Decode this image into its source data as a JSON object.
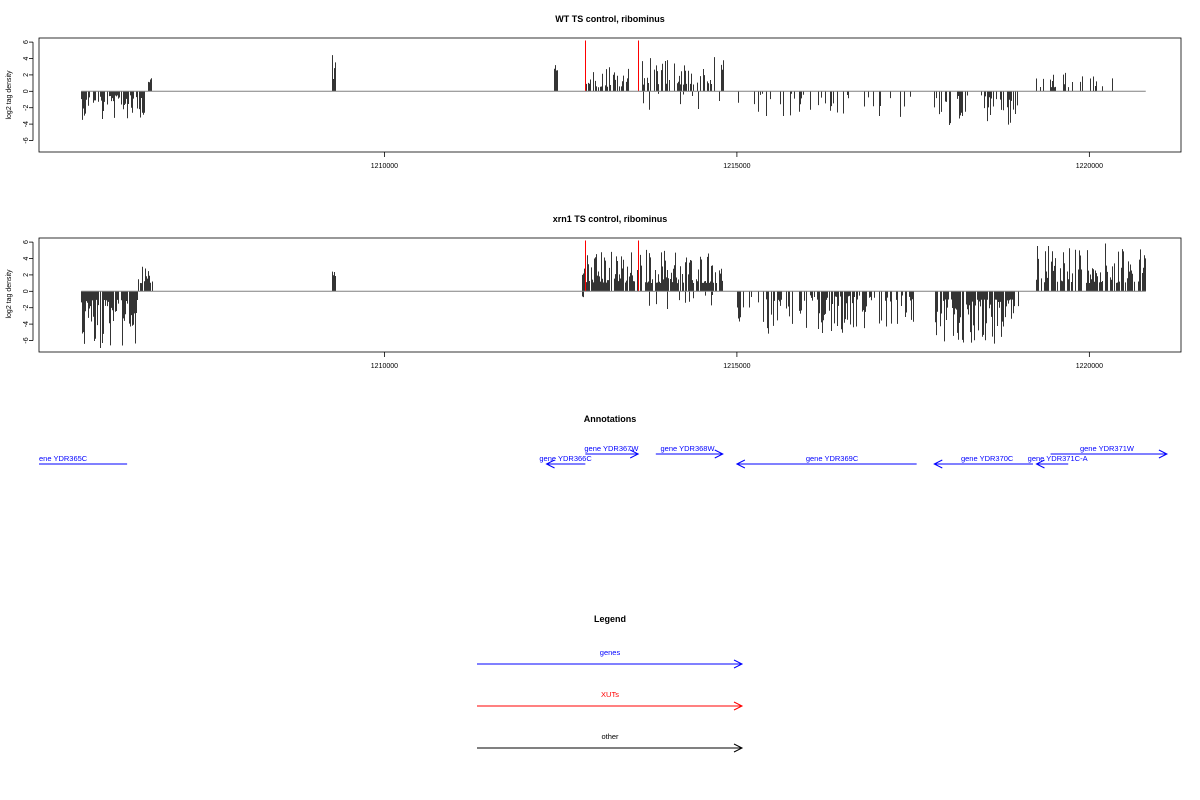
{
  "colors": {
    "genes": "#0000ff",
    "xuts": "#ff0000",
    "other": "#000000"
  },
  "chart_data": [
    {
      "type": "bar",
      "title": "WT TS control, ribominus",
      "ylabel": "log2 tag density",
      "xlim": [
        1205100,
        1221300
      ],
      "ylim": [
        -7.4,
        6.5
      ],
      "x_ticks": [
        1210000,
        1215000,
        1220000
      ],
      "y_ticks": [
        6,
        4,
        2,
        0,
        -2,
        -4,
        -6
      ],
      "x_tick_labels": [
        "1210000",
        "1215000",
        "1220000"
      ],
      "y_tick_labels": [
        "6",
        "4",
        "2",
        "0",
        "-2",
        "-4",
        "-6"
      ],
      "baseline": [
        1205700,
        1220800
      ],
      "xut_marks": [
        {
          "x": 1212850,
          "y": 6.2
        },
        {
          "x": 1213600,
          "y": 6.2
        }
      ],
      "regions": [
        {
          "x0": 1205700,
          "x1": 1206600,
          "sign": -1,
          "density": 0.75,
          "min": 0.5,
          "max": 3.5
        },
        {
          "x0": 1206650,
          "x1": 1206700,
          "sign": 1,
          "density": 1,
          "min": 1.0,
          "max": 1.6
        },
        {
          "x0": 1209250,
          "x1": 1209300,
          "sign": 1,
          "density": 1,
          "min": 1.5,
          "max": 5.2
        },
        {
          "x0": 1212400,
          "x1": 1212450,
          "sign": 1,
          "density": 1,
          "min": 2.5,
          "max": 3.3
        },
        {
          "x0": 1212850,
          "x1": 1213500,
          "sign": 1,
          "density": 0.55,
          "min": 0.5,
          "max": 3.0
        },
        {
          "x0": 1213650,
          "x1": 1214800,
          "sign": 1,
          "density": 0.6,
          "min": 0.8,
          "max": 4.3
        },
        {
          "x0": 1213650,
          "x1": 1214800,
          "sign": -1,
          "density": 0.06,
          "min": 0.3,
          "max": 2.5
        },
        {
          "x0": 1215000,
          "x1": 1217500,
          "sign": -1,
          "density": 0.22,
          "min": 0.3,
          "max": 3.2
        },
        {
          "x0": 1217800,
          "x1": 1219000,
          "sign": -1,
          "density": 0.4,
          "min": 0.5,
          "max": 4.6
        },
        {
          "x0": 1219250,
          "x1": 1220400,
          "sign": 1,
          "density": 0.22,
          "min": 0.5,
          "max": 3.0
        }
      ]
    },
    {
      "type": "bar",
      "title": "xrn1 TS control, ribominus",
      "ylabel": "log2 tag density",
      "xlim": [
        1205100,
        1221300
      ],
      "ylim": [
        -7.4,
        6.5
      ],
      "x_ticks": [
        1210000,
        1215000,
        1220000
      ],
      "y_ticks": [
        6,
        4,
        2,
        0,
        -2,
        -4,
        -6
      ],
      "x_tick_labels": [
        "1210000",
        "1215000",
        "1220000"
      ],
      "y_tick_labels": [
        "6",
        "4",
        "2",
        "0",
        "-2",
        "-4",
        "-6"
      ],
      "baseline": [
        1205700,
        1220800
      ],
      "xut_marks": [
        {
          "x": 1212850,
          "y": 6.2
        },
        {
          "x": 1213600,
          "y": 6.2
        }
      ],
      "regions": [
        {
          "x0": 1205700,
          "x1": 1206500,
          "sign": -1,
          "density": 0.95,
          "min": 1.0,
          "max": 7.2
        },
        {
          "x0": 1206500,
          "x1": 1206700,
          "sign": 1,
          "density": 0.8,
          "min": 1.0,
          "max": 3.3
        },
        {
          "x0": 1209250,
          "x1": 1209300,
          "sign": 1,
          "density": 1,
          "min": 1.5,
          "max": 3.7
        },
        {
          "x0": 1212700,
          "x1": 1212850,
          "sign": -1,
          "density": 0.3,
          "min": 0.5,
          "max": 1.5
        },
        {
          "x0": 1212800,
          "x1": 1212850,
          "sign": 1,
          "density": 1,
          "min": 2.0,
          "max": 3.0
        },
        {
          "x0": 1212850,
          "x1": 1213650,
          "sign": 1,
          "density": 0.85,
          "min": 1.0,
          "max": 5.0
        },
        {
          "x0": 1213700,
          "x1": 1214800,
          "sign": 1,
          "density": 0.85,
          "min": 1.0,
          "max": 5.3
        },
        {
          "x0": 1213600,
          "x1": 1214800,
          "sign": -1,
          "density": 0.12,
          "min": 0.4,
          "max": 2.2
        },
        {
          "x0": 1215000,
          "x1": 1217500,
          "sign": -1,
          "density": 0.5,
          "min": 0.5,
          "max": 5.2
        },
        {
          "x0": 1217800,
          "x1": 1219000,
          "sign": -1,
          "density": 0.75,
          "min": 1.0,
          "max": 6.5
        },
        {
          "x0": 1219250,
          "x1": 1220800,
          "sign": 1,
          "density": 0.75,
          "min": 1.0,
          "max": 6.0
        }
      ]
    }
  ],
  "annotations": {
    "title": "Annotations",
    "genes": [
      {
        "label": "ene YDR365C",
        "from": 1205100,
        "to": 1206350,
        "row": 0,
        "dir": "left",
        "label_x": 1205100,
        "label_align": "start"
      },
      {
        "label": "gene YDR366C",
        "from": 1212850,
        "to": 1212300,
        "row": 0,
        "dir": "left",
        "label_x": 1212570,
        "label_align": "middle"
      },
      {
        "label": "gene YDR367W",
        "from": 1212850,
        "to": 1213600,
        "row": 1,
        "dir": "right",
        "label_x": 1213220,
        "label_align": "middle"
      },
      {
        "label": "gene YDR368W",
        "from": 1213850,
        "to": 1214800,
        "row": 1,
        "dir": "right",
        "label_x": 1214300,
        "label_align": "middle"
      },
      {
        "label": "gene YDR369C",
        "from": 1217550,
        "to": 1215000,
        "row": 0,
        "dir": "left",
        "label_x": 1216350,
        "label_align": "middle"
      },
      {
        "label": "gene YDR370C",
        "from": 1219200,
        "to": 1217800,
        "row": 0,
        "dir": "left",
        "label_x": 1218550,
        "label_align": "middle"
      },
      {
        "label": "gene YDR371C-A",
        "from": 1219700,
        "to": 1219250,
        "row": 0,
        "dir": "left",
        "label_x": 1219550,
        "label_align": "middle"
      },
      {
        "label": "gene YDR371W",
        "from": 1219450,
        "to": 1221100,
        "row": 1,
        "dir": "right",
        "label_x": 1220250,
        "label_align": "middle"
      }
    ]
  },
  "legend": {
    "title": "Legend",
    "items": [
      {
        "label": "genes",
        "color": "#0000ff"
      },
      {
        "label": "XUTs",
        "color": "#ff0000"
      },
      {
        "label": "other",
        "color": "#000000"
      }
    ]
  }
}
